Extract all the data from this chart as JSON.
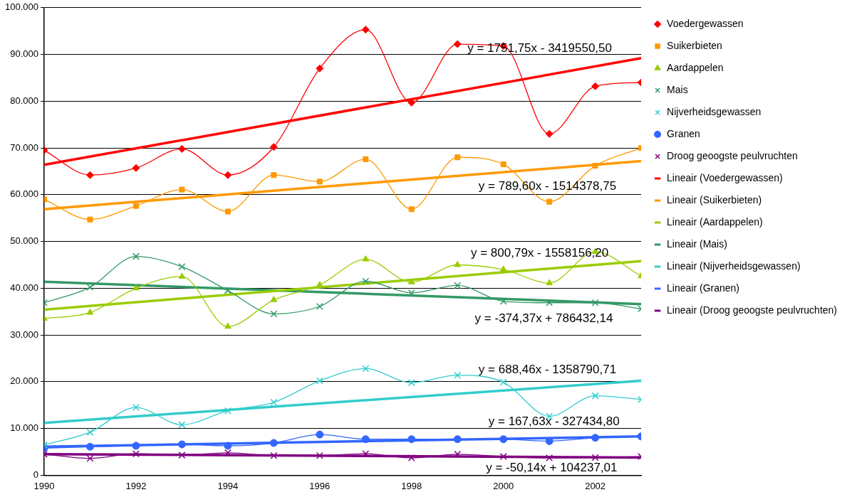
{
  "chart_data": {
    "type": "line",
    "x": [
      1990,
      1991,
      1992,
      1993,
      1994,
      1995,
      1996,
      1997,
      1998,
      1999,
      2000,
      2001,
      2002,
      2003
    ],
    "xlim": [
      1990,
      2003
    ],
    "xticks": [
      1990,
      1992,
      1994,
      1996,
      1998,
      2000,
      2002
    ],
    "ylim": [
      0,
      100000
    ],
    "yticks": [
      {
        "value": 0,
        "label": "0"
      },
      {
        "value": 10000,
        "label": "10.000"
      },
      {
        "value": 20000,
        "label": "20.000"
      },
      {
        "value": 30000,
        "label": "30.000"
      },
      {
        "value": 40000,
        "label": "40.000"
      },
      {
        "value": 50000,
        "label": "50.000"
      },
      {
        "value": 60000,
        "label": "60.000"
      },
      {
        "value": 70000,
        "label": "70.000"
      },
      {
        "value": 80000,
        "label": "80.000"
      },
      {
        "value": 90000,
        "label": "90.000"
      },
      {
        "value": 100000,
        "label": "100.000"
      }
    ],
    "grid": "y",
    "legend": "right",
    "series": [
      {
        "name": "Voedergewassen",
        "color": "#ff0000",
        "marker": "diamond",
        "values": [
          69500,
          64200,
          65700,
          69800,
          64200,
          70200,
          87000,
          95300,
          79700,
          92200,
          91800,
          73000,
          83200,
          84000
        ]
      },
      {
        "name": "Suikerbieten",
        "color": "#ff9900",
        "marker": "square",
        "values": [
          59000,
          54700,
          57600,
          61100,
          56400,
          64200,
          62800,
          67600,
          56900,
          68000,
          66500,
          58500,
          66200,
          70000
        ]
      },
      {
        "name": "Aardappelen",
        "color": "#99cc00",
        "marker": "triangle",
        "values": [
          33500,
          34800,
          40000,
          42500,
          31800,
          37500,
          40700,
          46200,
          41300,
          45000,
          44000,
          41100,
          47800,
          42600
        ]
      },
      {
        "name": "Mais",
        "color": "#339966",
        "marker": "cross",
        "values": [
          36900,
          40200,
          46800,
          44600,
          39500,
          34500,
          36100,
          41500,
          39000,
          40600,
          37200,
          36900,
          36900,
          35600
        ]
      },
      {
        "name": "Nijverheidsgewassen",
        "color": "#33cccc",
        "marker": "cross",
        "values": [
          6500,
          9200,
          14500,
          10800,
          13800,
          15600,
          20200,
          22800,
          19800,
          21400,
          19900,
          12600,
          17000,
          16200
        ]
      },
      {
        "name": "Granen",
        "color": "#3366ff",
        "marker": "circle",
        "values": [
          5800,
          6100,
          6300,
          6600,
          6300,
          6900,
          8700,
          7700,
          7700,
          7700,
          7700,
          7300,
          8000,
          8300
        ]
      },
      {
        "name": "Droog geoogste peulvruchten",
        "color": "#800080",
        "marker": "cross",
        "values": [
          4500,
          3600,
          4600,
          4300,
          4800,
          4200,
          4200,
          4600,
          3700,
          4500,
          4000,
          3700,
          3800,
          4000
        ]
      },
      {
        "name": "Lineair (Voedergewassen)",
        "color": "#ff0000",
        "marker": "none",
        "values": [
          66400,
          null,
          null,
          null,
          null,
          null,
          null,
          null,
          null,
          null,
          null,
          null,
          null,
          89200
        ]
      },
      {
        "name": "Lineair (Suikerbieten)",
        "color": "#ff9900",
        "marker": "none",
        "values": [
          56900,
          null,
          null,
          null,
          null,
          null,
          null,
          null,
          null,
          null,
          null,
          null,
          null,
          67200
        ]
      },
      {
        "name": "Lineair (Aardappelen)",
        "color": "#99cc00",
        "marker": "none",
        "values": [
          35400,
          null,
          null,
          null,
          null,
          null,
          null,
          null,
          null,
          null,
          null,
          null,
          null,
          45800
        ]
      },
      {
        "name": "Lineair (Mais)",
        "color": "#339966",
        "marker": "none",
        "values": [
          41400,
          null,
          null,
          null,
          null,
          null,
          null,
          null,
          null,
          null,
          null,
          null,
          null,
          36600
        ]
      },
      {
        "name": "Lineair (Nijverheidsgewassen)",
        "color": "#33cccc",
        "marker": "none",
        "values": [
          11200,
          null,
          null,
          null,
          null,
          null,
          null,
          null,
          null,
          null,
          null,
          null,
          null,
          20200
        ]
      },
      {
        "name": "Lineair (Granen)",
        "color": "#3366ff",
        "marker": "none",
        "values": [
          6100,
          null,
          null,
          null,
          null,
          null,
          null,
          null,
          null,
          null,
          null,
          null,
          null,
          8300
        ]
      },
      {
        "name": "Lineair (Droog geoogste peulvruchten)",
        "color": "#800080",
        "marker": "none",
        "values": [
          4500,
          null,
          null,
          null,
          null,
          null,
          null,
          null,
          null,
          null,
          null,
          null,
          null,
          3800
        ]
      }
    ],
    "annotations": [
      "y = 1751,75x - 3419550,50",
      "y = 789,60x - 1514378,75",
      "y = 800,79x - 1558156,20",
      "y = -374,37x + 786432,14",
      "y = 688,46x - 1358790,71",
      "y = 167,63x - 327434,80",
      "y = -50,14x + 104237,01"
    ]
  }
}
